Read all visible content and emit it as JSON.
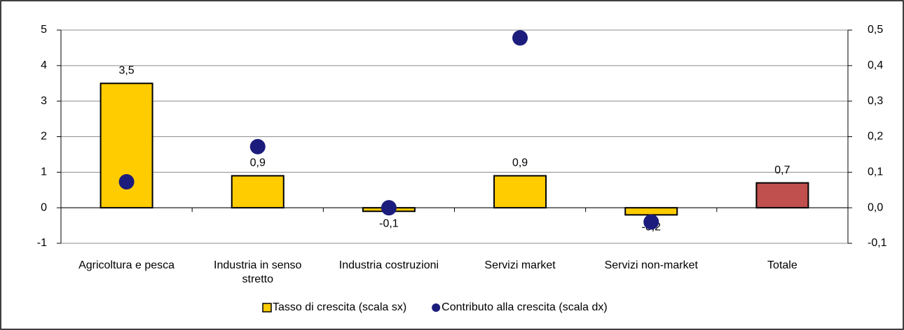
{
  "chart_data": {
    "type": "bar",
    "categories": [
      "Agricoltura e pesca",
      "Industria in senso stretto",
      "Industria costruzioni",
      "Servizi market",
      "Servizi non-market",
      "Totale"
    ],
    "series": [
      {
        "name": "Tasso di crescita (scala sx)",
        "type": "bar",
        "color": "#ffcc00",
        "colors": [
          "#ffcc00",
          "#ffcc00",
          "#ffcc00",
          "#ffcc00",
          "#ffcc00",
          "#c0504d"
        ],
        "values": [
          3.5,
          0.9,
          -0.1,
          0.9,
          -0.2,
          0.7
        ],
        "value_labels": [
          "3,5",
          "0,9",
          "-0,1",
          "0,9",
          "-0,2",
          "0,7"
        ]
      },
      {
        "name": "Contributo alla crescita (scala dx)",
        "type": "scatter",
        "axis": "y2",
        "color": "#1c1c7c",
        "values": [
          0.073,
          0.172,
          0.0,
          0.478,
          -0.04,
          null
        ]
      }
    ],
    "ylim": [
      -1,
      5
    ],
    "yticks": [
      -1,
      0,
      1,
      2,
      3,
      4,
      5
    ],
    "y2lim": [
      -0.1,
      0.5
    ],
    "y2ticks": [
      {
        "value": -0.1,
        "label": "-0,1"
      },
      {
        "value": 0.0,
        "label": "0,0"
      },
      {
        "value": 0.1,
        "label": "0,1"
      },
      {
        "value": 0.2,
        "label": "0,2"
      },
      {
        "value": 0.3,
        "label": "0,3"
      },
      {
        "value": 0.4,
        "label": "0,4"
      },
      {
        "value": 0.5,
        "label": "0,5"
      }
    ],
    "grid": true,
    "legend": "bottom"
  }
}
